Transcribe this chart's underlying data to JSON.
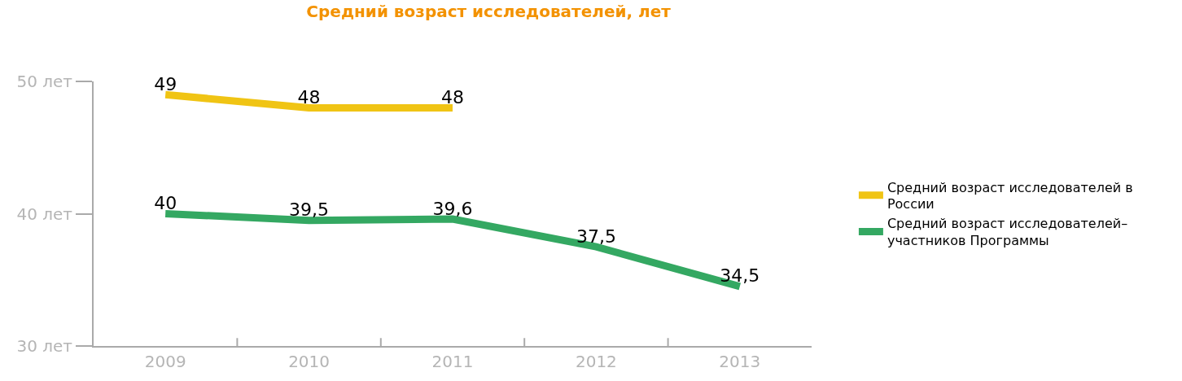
{
  "chart_data": {
    "type": "line",
    "title": "Средний возраст исследователей, лет",
    "categories": [
      "2009",
      "2010",
      "2011",
      "2012",
      "2013"
    ],
    "series": [
      {
        "name": "Средний возраст исследователей в России",
        "color": "#f0c414",
        "values": [
          49,
          48,
          48,
          null,
          null
        ],
        "value_labels": [
          "49",
          "48",
          "48",
          null,
          null
        ]
      },
      {
        "name": "Средний возраст исследователей–участников Программы",
        "color": "#34a862",
        "values": [
          40,
          39.5,
          39.6,
          37.5,
          34.5
        ],
        "value_labels": [
          "40",
          "39,5",
          "39,6",
          "37,5",
          "34,5"
        ]
      }
    ],
    "ylim": [
      30,
      50
    ],
    "yticks": [
      {
        "value": 30,
        "label": "30 лет"
      },
      {
        "value": 40,
        "label": "40 лет"
      },
      {
        "value": 50,
        "label": "50 лет"
      }
    ],
    "legend": "right",
    "marker": "none",
    "line_style": "solid"
  }
}
